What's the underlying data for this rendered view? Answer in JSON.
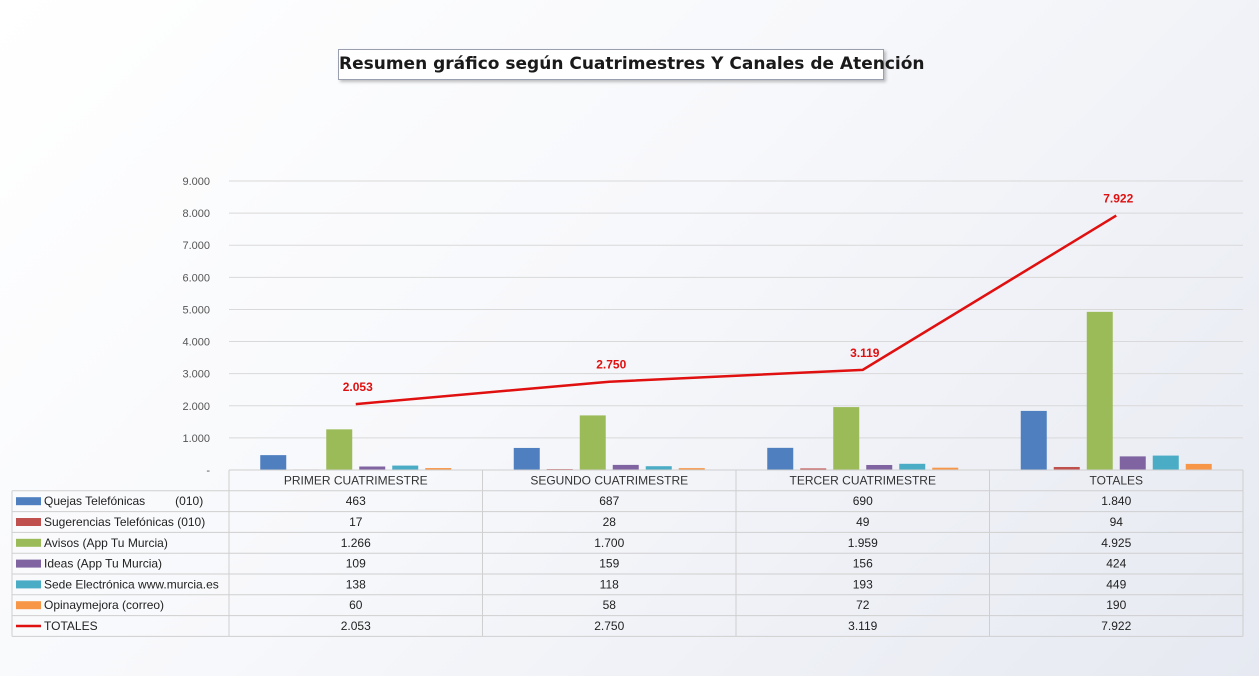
{
  "chart_data": {
    "type": "bar",
    "title": "Resumen gráfico según Cuatrimestres Y  Canales de Atención",
    "categories": [
      "PRIMER CUATRIMESTRE",
      "SEGUNDO CUATRIMESTRE",
      "TERCER CUATRIMESTRE",
      "TOTALES"
    ],
    "series": [
      {
        "name": "Quejas Telefónicas         (010)",
        "type": "bar",
        "color": "#4f7fbf",
        "values": [
          463,
          687,
          690,
          1840
        ],
        "labels": [
          "463",
          "687",
          "690",
          "1.840"
        ]
      },
      {
        "name": "Sugerencias Telefónicas (010)",
        "type": "bar",
        "color": "#c0504d",
        "values": [
          17,
          28,
          49,
          94
        ],
        "labels": [
          "17",
          "28",
          "49",
          "94"
        ]
      },
      {
        "name": "Avisos (App Tu Murcia)",
        "type": "bar",
        "color": "#9bbb59",
        "values": [
          1266,
          1700,
          1959,
          4925
        ],
        "labels": [
          "1.266",
          "1.700",
          "1.959",
          "4.925"
        ]
      },
      {
        "name": "Ideas (App Tu Murcia)",
        "type": "bar",
        "color": "#8064a2",
        "values": [
          109,
          159,
          156,
          424
        ],
        "labels": [
          "109",
          "159",
          "156",
          "424"
        ]
      },
      {
        "name": "Sede Electrónica www.murcia.es",
        "type": "bar",
        "color": "#4bacc6",
        "values": [
          138,
          118,
          193,
          449
        ],
        "labels": [
          "138",
          "118",
          "193",
          "449"
        ]
      },
      {
        "name": "Opinaymejora (correo)",
        "type": "bar",
        "color": "#f79646",
        "values": [
          60,
          58,
          72,
          190
        ],
        "labels": [
          "60",
          "58",
          "72",
          "190"
        ]
      },
      {
        "name": "TOTALES",
        "type": "line",
        "color": "#e01010",
        "values": [
          2053,
          2750,
          3119,
          7922
        ],
        "labels": [
          "2.053",
          "2.750",
          "3.119",
          "7.922"
        ]
      }
    ],
    "ylim": [
      0,
      9000
    ],
    "yticks": [
      0,
      1000,
      2000,
      3000,
      4000,
      5000,
      6000,
      7000,
      8000,
      9000
    ],
    "ytick_labels": [
      "-",
      "1.000",
      "2.000",
      "3.000",
      "4.000",
      "5.000",
      "6.000",
      "7.000",
      "8.000",
      "9.000"
    ],
    "grid": true,
    "legend": "data-table"
  }
}
